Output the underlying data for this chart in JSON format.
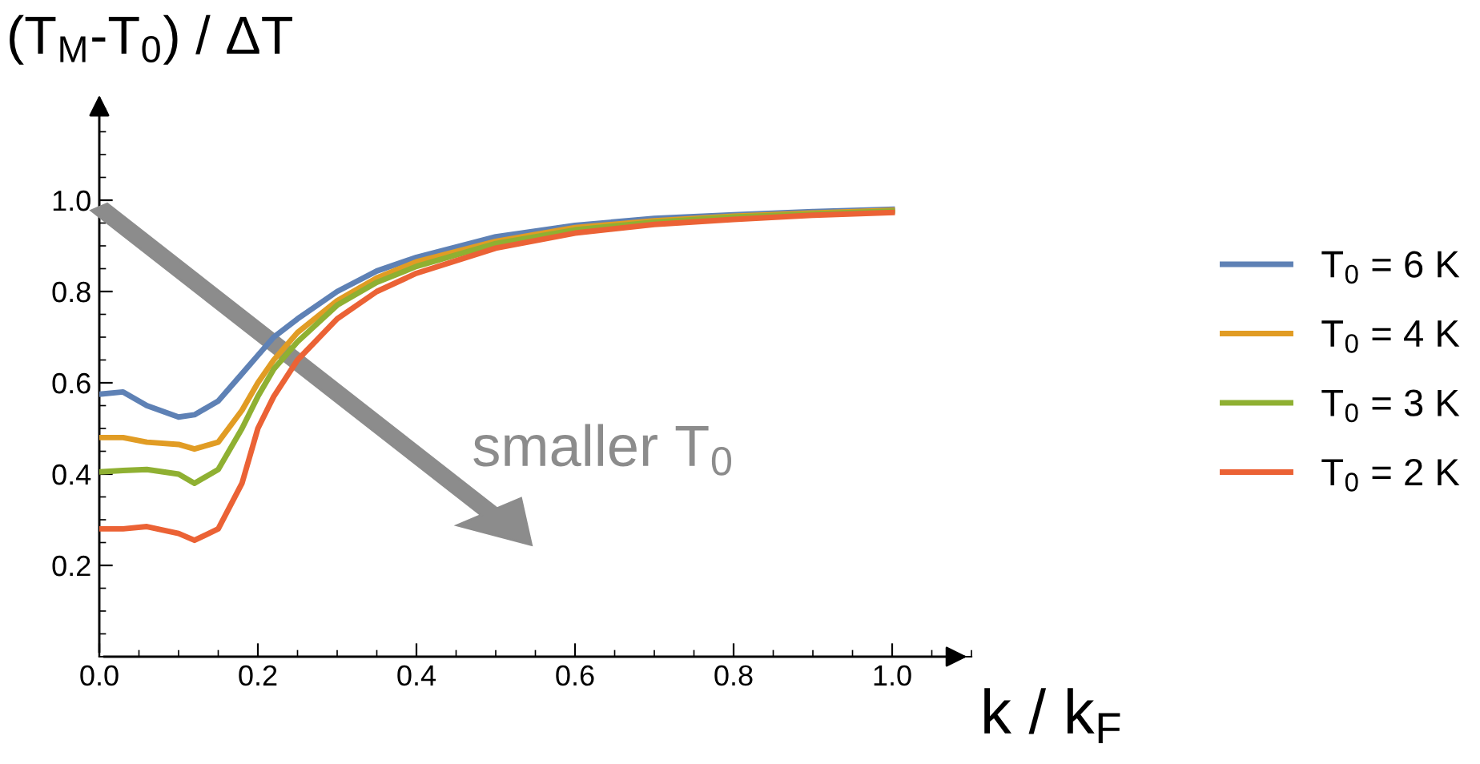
{
  "chart_data": {
    "type": "line",
    "xlabel": "k / k$_{F}$",
    "ylabel": "(T$_{M}$-T$_{0}$) / ΔT",
    "annotations": [
      "smaller T$_{0}$"
    ],
    "xlim": [
      0,
      1.1
    ],
    "ylim": [
      0,
      1.2
    ],
    "xticks": [
      {
        "value": 0,
        "label": "0.0"
      },
      0.2,
      0.4,
      0.6,
      0.8,
      {
        "value": 1,
        "label": "1.0"
      }
    ],
    "yticks": [
      0.2,
      0.4,
      0.6,
      0.8,
      {
        "value": 1,
        "label": "1.0"
      }
    ],
    "x": [
      0,
      0.03,
      0.06,
      0.1,
      0.12,
      0.15,
      0.18,
      0.2,
      0.22,
      0.25,
      0.3,
      0.35,
      0.4,
      0.5,
      0.6,
      0.7,
      0.8,
      0.9,
      1.0
    ],
    "series": [
      {
        "name": "T$_{0}$ = 6 K",
        "color": "#5e81b5",
        "values": [
          0.575,
          0.58,
          0.55,
          0.525,
          0.53,
          0.56,
          0.62,
          0.66,
          0.7,
          0.74,
          0.8,
          0.845,
          0.875,
          0.92,
          0.945,
          0.96,
          0.968,
          0.975,
          0.98
        ]
      },
      {
        "name": "T$_{0}$ = 4 K",
        "color": "#e19c24",
        "values": [
          0.48,
          0.48,
          0.47,
          0.465,
          0.455,
          0.47,
          0.54,
          0.6,
          0.65,
          0.71,
          0.78,
          0.83,
          0.865,
          0.91,
          0.94,
          0.955,
          0.965,
          0.972,
          0.978
        ]
      },
      {
        "name": "T$_{0}$ = 3 K",
        "color": "#8fb032",
        "values": [
          0.405,
          0.408,
          0.41,
          0.4,
          0.38,
          0.41,
          0.5,
          0.57,
          0.63,
          0.69,
          0.77,
          0.82,
          0.855,
          0.905,
          0.935,
          0.952,
          0.963,
          0.97,
          0.976
        ]
      },
      {
        "name": "T$_{0}$ = 2 K",
        "color": "#eb6235",
        "values": [
          0.28,
          0.28,
          0.285,
          0.27,
          0.255,
          0.28,
          0.38,
          0.5,
          0.57,
          0.65,
          0.74,
          0.8,
          0.84,
          0.895,
          0.928,
          0.947,
          0.958,
          0.967,
          0.973
        ]
      }
    ],
    "legend": "right",
    "grid": false
  }
}
